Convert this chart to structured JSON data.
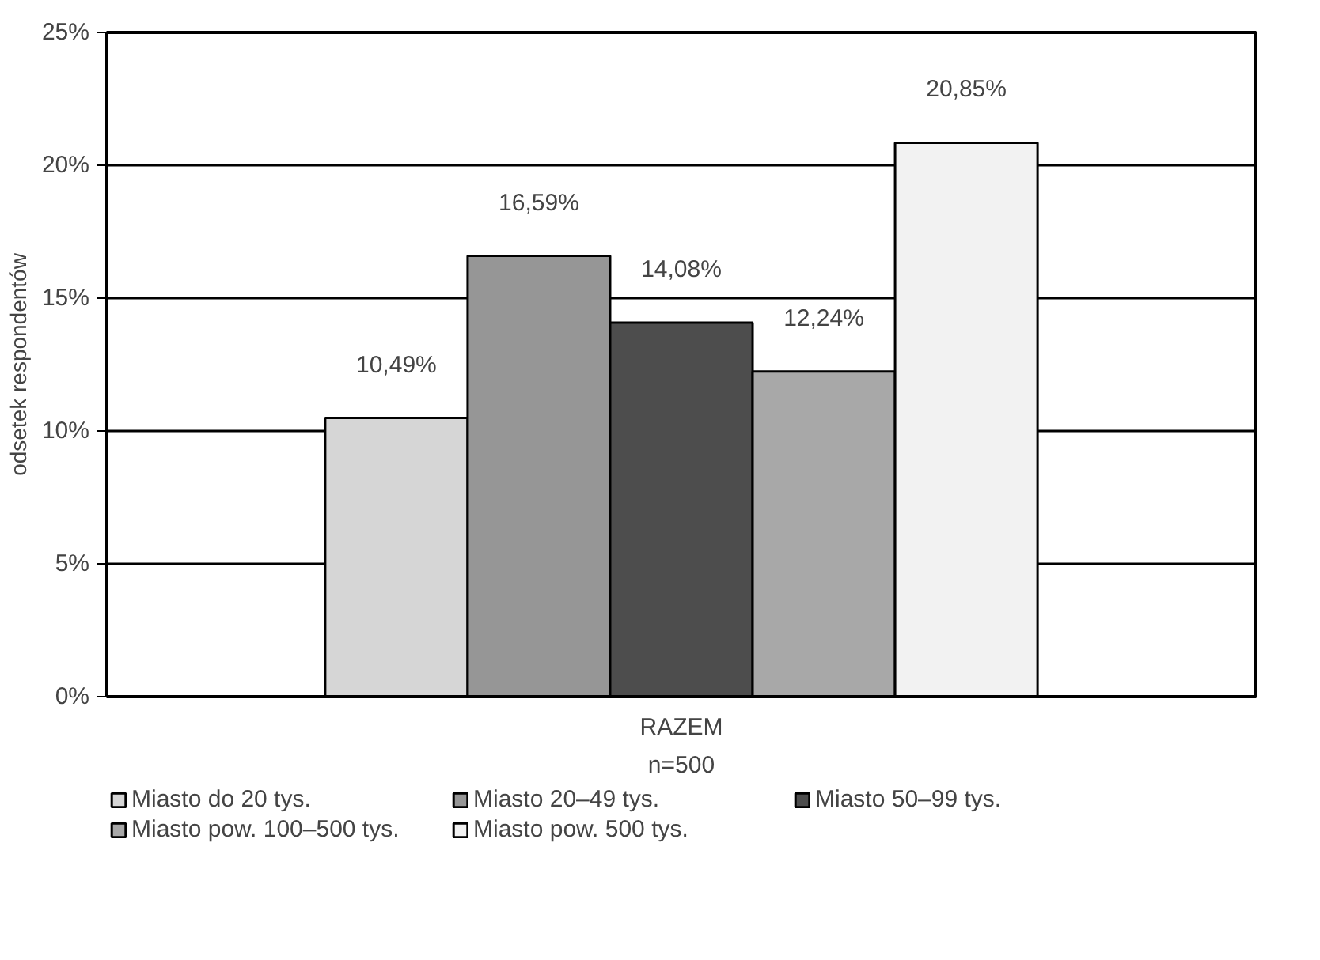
{
  "chart_data": {
    "type": "bar",
    "categories": [
      "RAZEM"
    ],
    "xlabel": "n=500",
    "ylabel": "odsetek respondentów",
    "series": [
      {
        "name": "Miasto do 20 tys.",
        "color": "#d6d6d6",
        "values": [
          10.49
        ],
        "value_labels": [
          "10,49%"
        ]
      },
      {
        "name": "Miasto 20–49 tys.",
        "color": "#969696",
        "values": [
          16.59
        ],
        "value_labels": [
          "16,59%"
        ]
      },
      {
        "name": "Miasto 50–99 tys.",
        "color": "#4d4d4d",
        "values": [
          14.08
        ],
        "value_labels": [
          "14,08%"
        ]
      },
      {
        "name": "Miasto pow. 100–500 tys.",
        "color": "#a8a8a8",
        "values": [
          12.24
        ],
        "value_labels": [
          "12,24%"
        ]
      },
      {
        "name": "Miasto pow. 500 tys.",
        "color": "#f2f2f2",
        "values": [
          20.85
        ],
        "value_labels": [
          "20,85%"
        ]
      }
    ],
    "ylim": [
      0,
      25
    ],
    "yticks": [
      {
        "value": 0,
        "label": "0%"
      },
      {
        "value": 5,
        "label": "5%"
      },
      {
        "value": 10,
        "label": "10%"
      },
      {
        "value": 15,
        "label": "15%"
      },
      {
        "value": 20,
        "label": "20%"
      },
      {
        "value": 25,
        "label": "25%"
      }
    ],
    "grid": "y",
    "legend": "bottom"
  }
}
